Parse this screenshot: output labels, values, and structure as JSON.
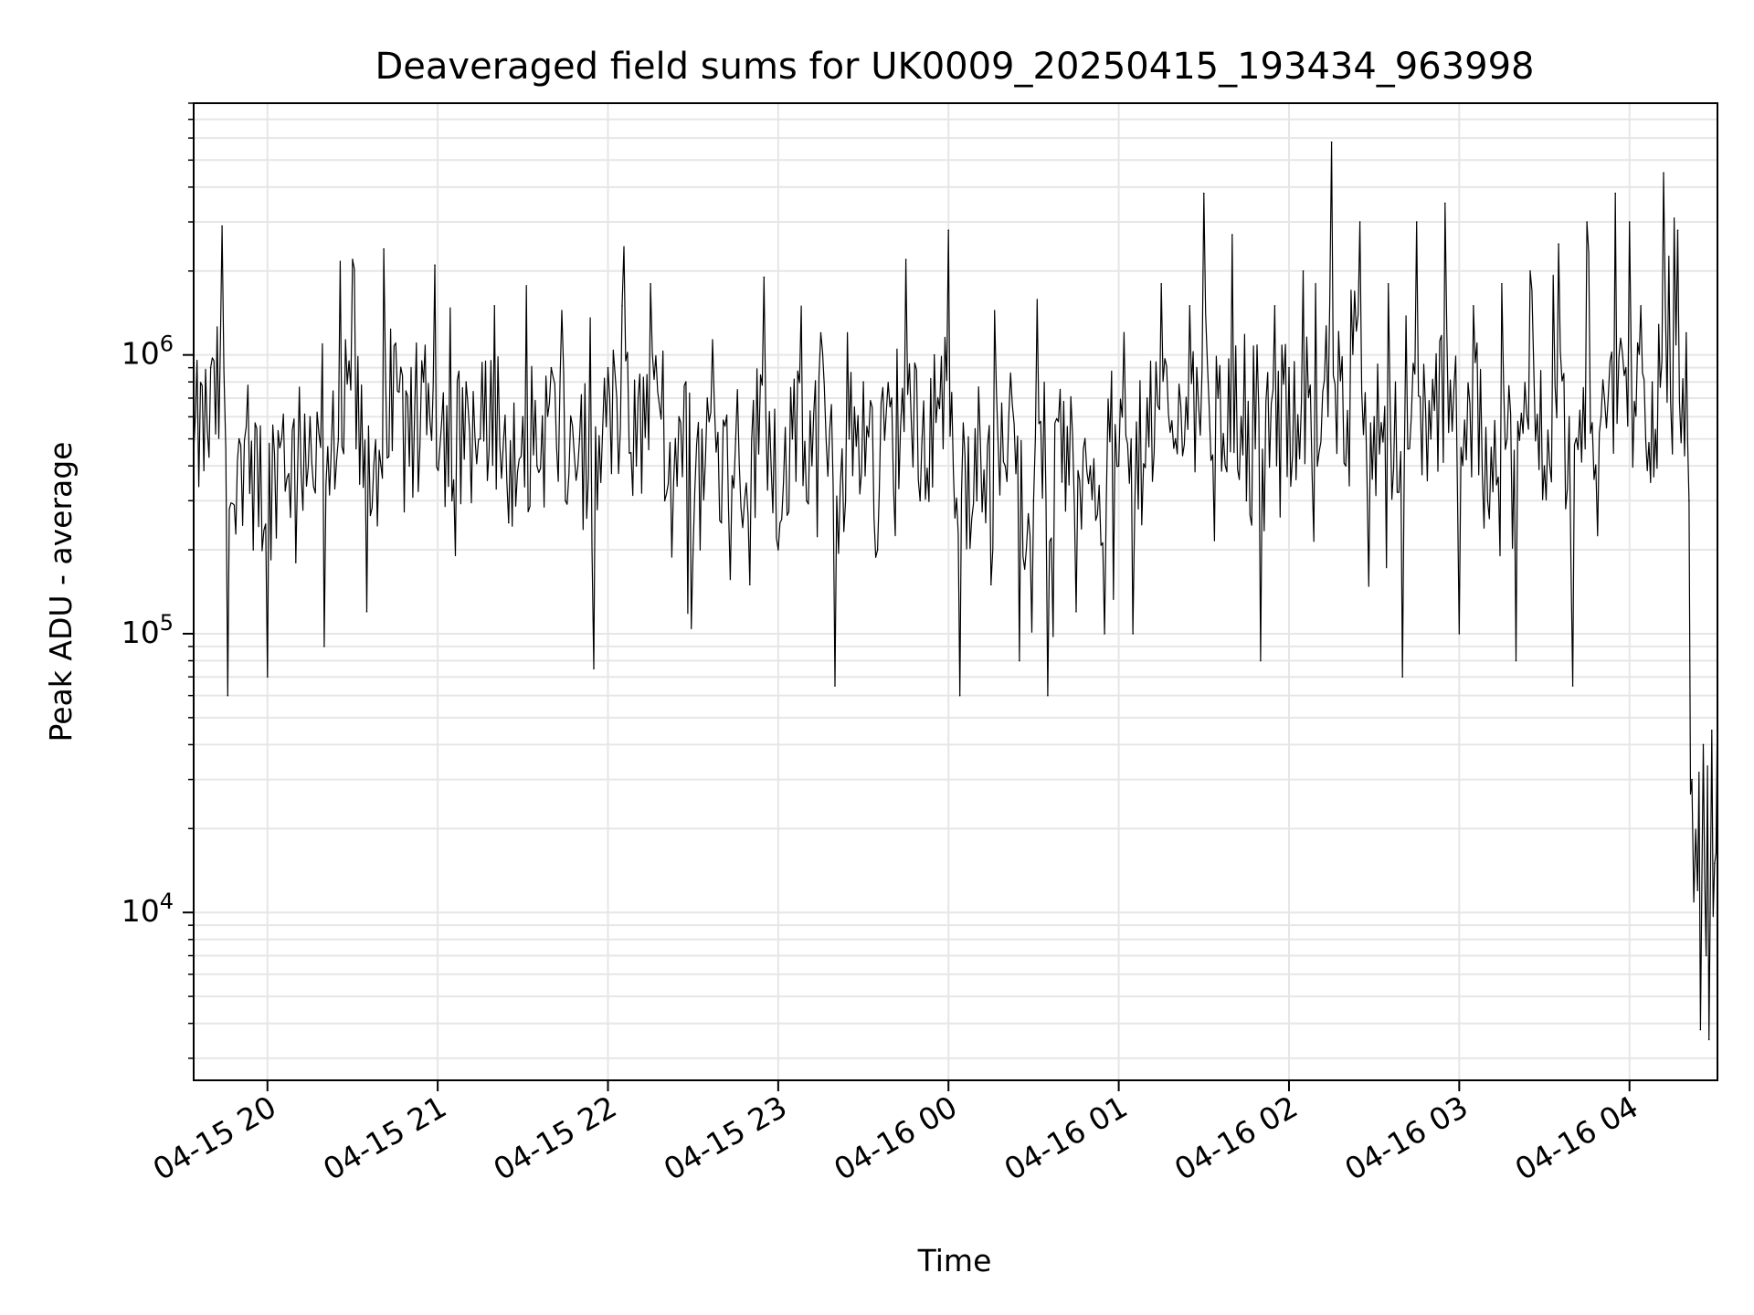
{
  "chart_data": {
    "type": "line",
    "title": "Deaveraged field sums for UK0009_20250415_193434_963998",
    "xlabel": "Time",
    "ylabel": "Peak ADU - average",
    "yscale": "log",
    "ylim": [
      2500,
      8000000
    ],
    "xlim": [
      "2025-04-15 19:34",
      "2025-04-16 04:31"
    ],
    "grid": true,
    "line_color": "#000000",
    "grid_color": "#e6e6e6",
    "x_ticks": [
      {
        "label": "04-15 20",
        "t": "2025-04-15 20:00"
      },
      {
        "label": "04-15 21",
        "t": "2025-04-15 21:00"
      },
      {
        "label": "04-15 22",
        "t": "2025-04-15 22:00"
      },
      {
        "label": "04-15 23",
        "t": "2025-04-15 23:00"
      },
      {
        "label": "04-16 00",
        "t": "2025-04-16 00:00"
      },
      {
        "label": "04-16 01",
        "t": "2025-04-16 01:00"
      },
      {
        "label": "04-16 02",
        "t": "2025-04-16 02:00"
      },
      {
        "label": "04-16 03",
        "t": "2025-04-16 03:00"
      },
      {
        "label": "04-16 04",
        "t": "2025-04-16 04:00"
      }
    ],
    "y_ticks": [
      {
        "base": "10",
        "exp": "4",
        "value": 10000
      },
      {
        "base": "10",
        "exp": "5",
        "value": 100000
      },
      {
        "base": "10",
        "exp": "6",
        "value": 1000000
      }
    ],
    "series": [
      {
        "points": [
          [
            "2025-04-15 19:34",
            450000
          ],
          [
            "2025-04-15 19:40",
            900000
          ],
          [
            "2025-04-15 19:44",
            2900000
          ],
          [
            "2025-04-15 19:46",
            60000
          ],
          [
            "2025-04-15 19:50",
            500000
          ],
          [
            "2025-04-15 19:55",
            200000
          ],
          [
            "2025-04-15 20:00",
            70000
          ],
          [
            "2025-04-15 20:05",
            500000
          ],
          [
            "2025-04-15 20:10",
            180000
          ],
          [
            "2025-04-15 20:15",
            600000
          ],
          [
            "2025-04-15 20:20",
            90000
          ],
          [
            "2025-04-15 20:25",
            500000
          ],
          [
            "2025-04-15 20:30",
            2200000
          ],
          [
            "2025-04-15 20:35",
            120000
          ],
          [
            "2025-04-15 20:40",
            400000
          ],
          [
            "2025-04-15 20:41",
            2400000
          ],
          [
            "2025-04-15 20:50",
            400000
          ],
          [
            "2025-04-15 20:55",
            800000
          ],
          [
            "2025-04-15 20:59",
            2100000
          ],
          [
            "2025-04-15 21:05",
            300000
          ],
          [
            "2025-04-15 21:10",
            800000
          ],
          [
            "2025-04-15 21:15",
            500000
          ],
          [
            "2025-04-15 21:20",
            1500000
          ],
          [
            "2025-04-15 21:25",
            250000
          ],
          [
            "2025-04-15 21:30",
            600000
          ],
          [
            "2025-04-15 21:35",
            400000
          ],
          [
            "2025-04-15 21:40",
            900000
          ],
          [
            "2025-04-15 21:45",
            300000
          ],
          [
            "2025-04-15 21:50",
            500000
          ],
          [
            "2025-04-15 21:55",
            75000
          ],
          [
            "2025-04-15 22:00",
            900000
          ],
          [
            "2025-04-15 22:05",
            1500000
          ],
          [
            "2025-04-15 22:10",
            400000
          ],
          [
            "2025-04-15 22:15",
            1800000
          ],
          [
            "2025-04-15 22:20",
            300000
          ],
          [
            "2025-04-15 22:25",
            600000
          ],
          [
            "2025-04-15 22:30",
            200000
          ],
          [
            "2025-04-15 22:35",
            700000
          ],
          [
            "2025-04-15 22:40",
            250000
          ],
          [
            "2025-04-15 22:45",
            500000
          ],
          [
            "2025-04-15 22:50",
            150000
          ],
          [
            "2025-04-15 22:55",
            1900000
          ],
          [
            "2025-04-15 23:00",
            200000
          ],
          [
            "2025-04-15 23:05",
            500000
          ],
          [
            "2025-04-15 23:10",
            300000
          ],
          [
            "2025-04-15 23:15",
            1200000
          ],
          [
            "2025-04-15 23:20",
            65000
          ],
          [
            "2025-04-15 23:25",
            500000
          ],
          [
            "2025-04-15 23:30",
            800000
          ],
          [
            "2025-04-15 23:35",
            200000
          ],
          [
            "2025-04-15 23:40",
            700000
          ],
          [
            "2025-04-15 23:45",
            2200000
          ],
          [
            "2025-04-15 23:50",
            300000
          ],
          [
            "2025-04-15 23:55",
            1000000
          ],
          [
            "2025-04-16 00:00",
            2800000
          ],
          [
            "2025-04-16 00:04",
            60000
          ],
          [
            "2025-04-16 00:10",
            300000
          ],
          [
            "2025-04-16 00:15",
            150000
          ],
          [
            "2025-04-16 00:20",
            400000
          ],
          [
            "2025-04-16 00:25",
            80000
          ],
          [
            "2025-04-16 00:30",
            300000
          ],
          [
            "2025-04-16 00:35",
            60000
          ],
          [
            "2025-04-16 00:40",
            350000
          ],
          [
            "2025-04-16 00:45",
            120000
          ],
          [
            "2025-04-16 00:50",
            400000
          ],
          [
            "2025-04-16 00:55",
            100000
          ],
          [
            "2025-04-16 01:00",
            400000
          ],
          [
            "2025-04-16 01:05",
            100000
          ],
          [
            "2025-04-16 01:10",
            700000
          ],
          [
            "2025-04-16 01:15",
            1800000
          ],
          [
            "2025-04-16 01:20",
            500000
          ],
          [
            "2025-04-16 01:25",
            1500000
          ],
          [
            "2025-04-16 01:30",
            3800000
          ],
          [
            "2025-04-16 01:35",
            700000
          ],
          [
            "2025-04-16 01:40",
            2700000
          ],
          [
            "2025-04-16 01:45",
            300000
          ],
          [
            "2025-04-16 01:50",
            80000
          ],
          [
            "2025-04-16 01:55",
            1500000
          ],
          [
            "2025-04-16 02:00",
            900000
          ],
          [
            "2025-04-16 02:05",
            2000000
          ],
          [
            "2025-04-16 02:10",
            400000
          ],
          [
            "2025-04-16 02:15",
            5800000
          ],
          [
            "2025-04-16 02:20",
            400000
          ],
          [
            "2025-04-16 02:25",
            3000000
          ],
          [
            "2025-04-16 02:30",
            600000
          ],
          [
            "2025-04-16 02:35",
            1800000
          ],
          [
            "2025-04-16 02:40",
            70000
          ],
          [
            "2025-04-16 02:45",
            3000000
          ],
          [
            "2025-04-16 02:50",
            500000
          ],
          [
            "2025-04-16 02:55",
            3500000
          ],
          [
            "2025-04-16 03:00",
            100000
          ],
          [
            "2025-04-16 03:05",
            1500000
          ],
          [
            "2025-04-16 03:10",
            300000
          ],
          [
            "2025-04-16 03:15",
            1800000
          ],
          [
            "2025-04-16 03:20",
            80000
          ],
          [
            "2025-04-16 03:25",
            2000000
          ],
          [
            "2025-04-16 03:30",
            400000
          ],
          [
            "2025-04-16 03:35",
            2500000
          ],
          [
            "2025-04-16 03:40",
            65000
          ],
          [
            "2025-04-16 03:45",
            3000000
          ],
          [
            "2025-04-16 03:50",
            600000
          ],
          [
            "2025-04-16 03:55",
            3800000
          ],
          [
            "2025-04-16 04:00",
            3000000
          ],
          [
            "2025-04-16 04:04",
            1500000
          ],
          [
            "2025-04-16 04:08",
            800000
          ],
          [
            "2025-04-16 04:12",
            4500000
          ],
          [
            "2025-04-16 04:17",
            2800000
          ],
          [
            "2025-04-16 04:20",
            1200000
          ],
          [
            "2025-04-16 04:21",
            300000
          ],
          [
            "2025-04-16 04:22",
            30000
          ],
          [
            "2025-04-16 04:24",
            12000
          ],
          [
            "2025-04-16 04:25",
            3800
          ],
          [
            "2025-04-16 04:26",
            40000
          ],
          [
            "2025-04-16 04:27",
            7000
          ],
          [
            "2025-04-16 04:28",
            3500
          ],
          [
            "2025-04-16 04:29",
            45000
          ],
          [
            "2025-04-16 04:30",
            15000
          ],
          [
            "2025-04-16 04:31",
            55000
          ]
        ]
      }
    ]
  }
}
